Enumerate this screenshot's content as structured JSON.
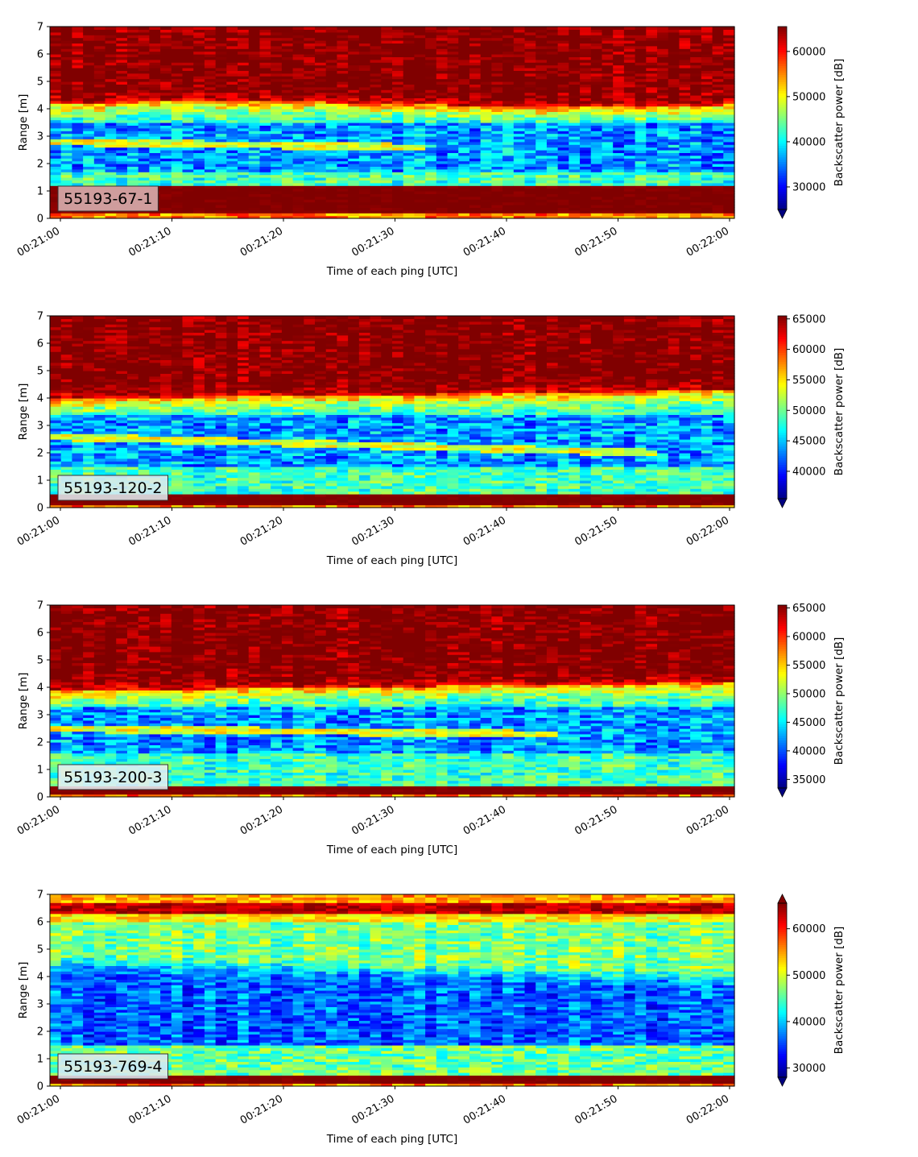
{
  "chart_data": [
    {
      "type": "heatmap",
      "label": "55193-67-1",
      "xlabel": "Time of each ping [UTC]",
      "ylabel": "Range [m]",
      "colorbar_label": "Backscatter power [dB]",
      "ylim": [
        0,
        7
      ],
      "yticks": [
        "0",
        "1",
        "2",
        "3",
        "4",
        "5",
        "6",
        "7"
      ],
      "xticks": [
        "00:21:00",
        "00:21:10",
        "00:21:20",
        "00:21:30",
        "00:21:40",
        "00:21:50",
        "00:22:00"
      ],
      "clim": [
        25000,
        65500
      ],
      "cbar_ticks": [
        30000,
        40000,
        50000,
        60000
      ],
      "cbar_extend": "min",
      "label_box_color": "#d9b3b3",
      "colormap": "jet",
      "structure": {
        "bottom_band_m": [
          0.2,
          1.2
        ],
        "surface_m": [
          0,
          0.2
        ],
        "dark_layer_m": [
          1.7,
          3.5
        ],
        "upper_hot_m": 4.2,
        "line_layer": {
          "start_m": 2.8,
          "end_m": 2.6,
          "end_frac": 0.55
        }
      }
    },
    {
      "type": "heatmap",
      "label": "55193-120-2",
      "xlabel": "Time of each ping [UTC]",
      "ylabel": "Range [m]",
      "colorbar_label": "Backscatter power [dB]",
      "ylim": [
        0,
        7
      ],
      "yticks": [
        "0",
        "1",
        "2",
        "3",
        "4",
        "5",
        "6",
        "7"
      ],
      "xticks": [
        "00:21:00",
        "00:21:10",
        "00:21:20",
        "00:21:30",
        "00:21:40",
        "00:21:50",
        "00:22:00"
      ],
      "clim": [
        35500,
        65500
      ],
      "cbar_ticks": [
        40000,
        45000,
        50000,
        55000,
        60000,
        65000
      ],
      "cbar_extend": "min",
      "label_box_color": "#dfe9ee",
      "colormap": "jet",
      "structure": {
        "bottom_band_m": [
          0.1,
          0.55
        ],
        "surface_m": [
          0,
          0.1
        ],
        "dark_layer_m": [
          1.5,
          3.4
        ],
        "upper_hot_m": 4.0,
        "line_layer": {
          "start_m": 2.6,
          "end_m": 2.0,
          "end_frac": 0.9
        }
      }
    },
    {
      "type": "heatmap",
      "label": "55193-200-3",
      "xlabel": "Time of each ping [UTC]",
      "ylabel": "Range [m]",
      "colorbar_label": "Backscatter power [dB]",
      "ylim": [
        0,
        7
      ],
      "yticks": [
        "0",
        "1",
        "2",
        "3",
        "4",
        "5",
        "6",
        "7"
      ],
      "xticks": [
        "00:21:00",
        "00:21:10",
        "00:21:20",
        "00:21:30",
        "00:21:40",
        "00:21:50",
        "00:22:00"
      ],
      "clim": [
        33500,
        65500
      ],
      "cbar_ticks": [
        35000,
        40000,
        45000,
        50000,
        55000,
        60000,
        65000
      ],
      "cbar_extend": "min",
      "label_box_color": "#e6eef2",
      "colormap": "jet",
      "structure": {
        "bottom_band_m": [
          0.1,
          0.45
        ],
        "surface_m": [
          0,
          0.1
        ],
        "dark_layer_m": [
          1.6,
          3.3
        ],
        "upper_hot_m": 3.9,
        "line_layer": {
          "start_m": 2.5,
          "end_m": 2.3,
          "end_frac": 0.75
        }
      }
    },
    {
      "type": "heatmap",
      "label": "55193-769-4",
      "xlabel": "Time of each ping [UTC]",
      "ylabel": "Range [m]",
      "colorbar_label": "Backscatter power [dB]",
      "ylim": [
        0,
        7
      ],
      "yticks": [
        "0",
        "1",
        "2",
        "3",
        "4",
        "5",
        "6",
        "7"
      ],
      "xticks": [
        "00:21:00",
        "00:21:10",
        "00:21:20",
        "00:21:30",
        "00:21:40",
        "00:21:50",
        "00:22:00"
      ],
      "clim": [
        28000,
        65500
      ],
      "cbar_ticks": [
        30000,
        40000,
        50000,
        60000
      ],
      "cbar_extend": "both",
      "label_box_color": "#dde8f0",
      "colormap": "jet",
      "structure": {
        "bottom_band_m": [
          0.1,
          0.4
        ],
        "surface_m": [
          0,
          0.1
        ],
        "dark_layer_m": [
          1.5,
          3.9
        ],
        "upper_hot_m": 6.4,
        "line_layer": null
      }
    }
  ]
}
